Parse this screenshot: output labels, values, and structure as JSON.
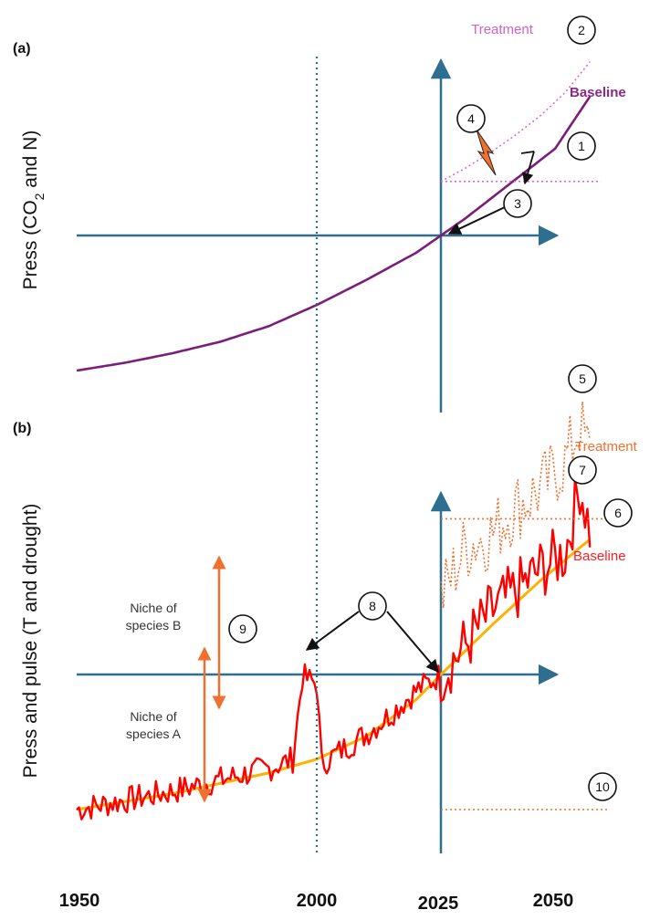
{
  "chart_data": [
    {
      "panel": "(a)",
      "type": "line",
      "ylabel": "Press (CO",
      "ylabel_sub": "2",
      "ylabel_tail": " and N)",
      "xlim": [
        1950,
        2060
      ],
      "series": [
        {
          "name": "Baseline",
          "color": "#7B1E7A",
          "style": "solid",
          "x": [
            1950,
            1960,
            1970,
            1980,
            1990,
            2000,
            2010,
            2020,
            2025,
            2030,
            2040,
            2048,
            2055
          ],
          "y": [
            0.0,
            0.04,
            0.09,
            0.15,
            0.23,
            0.34,
            0.47,
            0.61,
            0.7,
            0.79,
            0.99,
            1.15,
            1.42
          ]
        },
        {
          "name": "Treatment",
          "color": "#E06AD3",
          "style": "dotted",
          "x": [
            2025,
            2030,
            2035,
            2040,
            2045,
            2050,
            2055
          ],
          "y": [
            0.98,
            1.05,
            1.13,
            1.22,
            1.32,
            1.44,
            1.6
          ]
        }
      ],
      "reference_lines": [
        {
          "name": "step-level",
          "y": 0.98,
          "x": [
            2025,
            2055
          ],
          "color": "#E06AD3"
        }
      ],
      "callouts": [
        "1",
        "2",
        "3",
        "4"
      ]
    },
    {
      "panel": "(b)",
      "type": "line",
      "ylabel": "Press and pulse (T and drought)",
      "xlim": [
        1950,
        2060
      ],
      "series": [
        {
          "name": "Baseline",
          "color": "#FF0000",
          "style": "solid-noisy",
          "trend_color": "#FFB000",
          "x": [
            1950,
            1960,
            1970,
            1980,
            1990,
            1995,
            1997,
            2000,
            2001,
            2005,
            2010,
            2015,
            2020,
            2025,
            2030,
            2035,
            2040,
            2045,
            2050,
            2053,
            2055
          ],
          "y": [
            0.0,
            0.04,
            0.08,
            0.13,
            0.18,
            0.22,
            0.58,
            0.55,
            0.2,
            0.26,
            0.33,
            0.42,
            0.52,
            0.59,
            0.72,
            0.86,
            0.95,
            1.05,
            1.12,
            1.42,
            1.22
          ]
        },
        {
          "name": "Treatment",
          "color": "#F07030",
          "style": "dotted-noisy",
          "x": [
            2025,
            2030,
            2035,
            2040,
            2045,
            2050,
            2053,
            2055
          ],
          "y": [
            0.92,
            1.15,
            1.2,
            1.32,
            1.4,
            1.52,
            1.68,
            1.55
          ]
        }
      ],
      "reference_lines": [
        {
          "name": "treatment-level",
          "y": 1.27,
          "x": [
            2025,
            2060
          ],
          "color": "#F07030"
        },
        {
          "name": "lower-level",
          "y": 0.0,
          "x": [
            2025,
            2058
          ],
          "color": "#F07030"
        }
      ],
      "annotations": [
        {
          "id": "niche-b",
          "text": [
            "Niche of",
            "species B"
          ]
        },
        {
          "id": "niche-a",
          "text": [
            "Niche of",
            "species A"
          ]
        }
      ],
      "callouts": [
        "5",
        "6",
        "7",
        "8",
        "9",
        "10"
      ]
    }
  ],
  "x_ticks": [
    "1950",
    "2000",
    "2025",
    "2050"
  ],
  "axis_color": "#2E6E8E",
  "dotted_line_color": "#2E6E8E"
}
